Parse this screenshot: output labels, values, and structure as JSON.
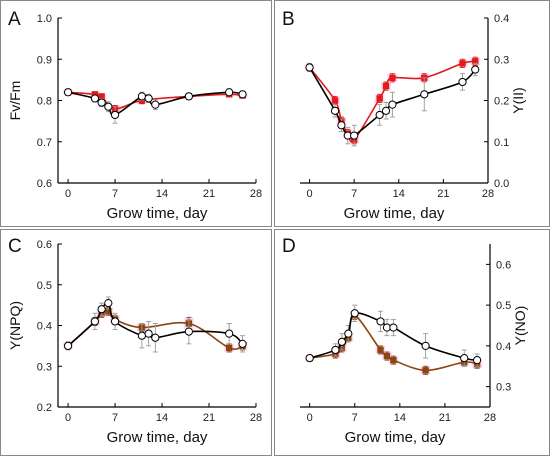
{
  "figure": {
    "colors": {
      "frame": "#888888",
      "axis": "#000000",
      "control": "#000000",
      "treated_red": "#e31a1c",
      "treated_brown": "#8b4513",
      "error_bar": "#999999",
      "treated_shade": "#ff99dd"
    }
  },
  "chart_data": [
    {
      "panel": "A",
      "type": "line",
      "xlabel": "Grow time, day",
      "ylabel": "Fv/Fm",
      "ylabel_side": "left",
      "xlim": [
        -1.5,
        28
      ],
      "ylim": [
        0.6,
        1.0
      ],
      "xticks": [
        "0",
        "7",
        "14",
        "21",
        "28"
      ],
      "yticks": [
        "0.6",
        "0.7",
        "0.8",
        "0.9",
        "1.0"
      ],
      "series": [
        {
          "marker": "circle-open",
          "color": "#000000",
          "x": [
            0,
            4,
            5,
            6,
            7,
            11,
            12,
            13,
            18,
            24,
            26
          ],
          "y": [
            0.82,
            0.805,
            0.795,
            0.785,
            0.765,
            0.81,
            0.805,
            0.79,
            0.81,
            0.82,
            0.815
          ],
          "err": [
            0.008,
            0.008,
            0.01,
            0.012,
            0.02,
            0.01,
            0.01,
            0.012,
            0.008,
            0.008,
            0.008
          ]
        },
        {
          "marker": "square-filled",
          "color": "#e31a1c",
          "x": [
            0,
            4,
            5,
            7,
            11,
            18,
            24,
            26
          ],
          "y": [
            0.82,
            0.815,
            0.81,
            0.78,
            0.8,
            0.81,
            0.815,
            0.812
          ],
          "err": [
            0.006,
            0.006,
            0.006,
            0.008,
            0.008,
            0.006,
            0.006,
            0.006
          ]
        }
      ]
    },
    {
      "panel": "B",
      "type": "line",
      "xlabel": "Grow time, day",
      "ylabel": "Y(II)",
      "ylabel_side": "right",
      "xlim": [
        -1.5,
        28
      ],
      "ylim": [
        0.0,
        0.4
      ],
      "xticks": [
        "0",
        "7",
        "14",
        "21",
        "28"
      ],
      "yticks": [
        "0.0",
        "0.1",
        "0.2",
        "0.3",
        "0.4"
      ],
      "series": [
        {
          "marker": "circle-open",
          "color": "#000000",
          "x": [
            0,
            4,
            5,
            6,
            7,
            11,
            12,
            13,
            18,
            24,
            26
          ],
          "y": [
            0.28,
            0.175,
            0.14,
            0.115,
            0.115,
            0.165,
            0.175,
            0.19,
            0.215,
            0.245,
            0.275
          ],
          "err": [
            0.01,
            0.015,
            0.015,
            0.02,
            0.025,
            0.025,
            0.02,
            0.03,
            0.04,
            0.02,
            0.015
          ]
        },
        {
          "marker": "square-filled",
          "color": "#e31a1c",
          "x": [
            0,
            4,
            5,
            6,
            7,
            11,
            12,
            13,
            18,
            24,
            26
          ],
          "y": [
            0.28,
            0.2,
            0.15,
            0.12,
            0.105,
            0.205,
            0.235,
            0.255,
            0.255,
            0.29,
            0.295
          ],
          "err": [
            0.008,
            0.01,
            0.01,
            0.01,
            0.01,
            0.01,
            0.01,
            0.01,
            0.01,
            0.01,
            0.01
          ]
        }
      ]
    },
    {
      "panel": "C",
      "type": "line",
      "xlabel": "Grow time, day",
      "ylabel": "Y(NPQ)",
      "ylabel_side": "left",
      "xlim": [
        -1.5,
        28
      ],
      "ylim": [
        0.2,
        0.6
      ],
      "xticks": [
        "0",
        "7",
        "14",
        "21",
        "28"
      ],
      "yticks": [
        "0.2",
        "0.3",
        "0.4",
        "0.5",
        "0.6"
      ],
      "series": [
        {
          "marker": "circle-open",
          "color": "#000000",
          "x": [
            0,
            4,
            5,
            6,
            7,
            11,
            12,
            13,
            18,
            24,
            26
          ],
          "y": [
            0.35,
            0.41,
            0.44,
            0.455,
            0.41,
            0.375,
            0.38,
            0.37,
            0.385,
            0.38,
            0.355
          ],
          "err": [
            0.01,
            0.02,
            0.015,
            0.015,
            0.02,
            0.03,
            0.03,
            0.035,
            0.03,
            0.025,
            0.02
          ]
        },
        {
          "marker": "square-filled",
          "color": "#8b4513",
          "x": [
            0,
            4,
            5,
            6,
            7,
            11,
            18,
            24,
            26
          ],
          "y": [
            0.35,
            0.41,
            0.43,
            0.435,
            0.415,
            0.395,
            0.405,
            0.345,
            0.35
          ],
          "err": [
            0.008,
            0.01,
            0.01,
            0.01,
            0.01,
            0.01,
            0.015,
            0.01,
            0.01
          ]
        }
      ]
    },
    {
      "panel": "D",
      "type": "line",
      "xlabel": "Grow time, day",
      "ylabel": "Y(NO)",
      "ylabel_side": "right",
      "xlim": [
        -1.5,
        28
      ],
      "ylim": [
        0.25,
        0.65
      ],
      "xticks": [
        "0",
        "7",
        "14",
        "21",
        "28"
      ],
      "yticks": [
        "0.3",
        "0.4",
        "0.5",
        "0.6"
      ],
      "series": [
        {
          "marker": "circle-open",
          "color": "#000000",
          "x": [
            0,
            4,
            5,
            6,
            7,
            11,
            12,
            13,
            18,
            24,
            26
          ],
          "y": [
            0.37,
            0.39,
            0.41,
            0.43,
            0.48,
            0.46,
            0.445,
            0.445,
            0.4,
            0.37,
            0.365
          ],
          "err": [
            0.008,
            0.015,
            0.02,
            0.02,
            0.02,
            0.025,
            0.02,
            0.02,
            0.03,
            0.02,
            0.015
          ]
        },
        {
          "marker": "square-filled",
          "color": "#8b4513",
          "x": [
            0,
            4,
            5,
            6,
            7,
            11,
            12,
            13,
            18,
            24,
            26
          ],
          "y": [
            0.37,
            0.38,
            0.395,
            0.42,
            0.475,
            0.39,
            0.375,
            0.365,
            0.34,
            0.36,
            0.355
          ],
          "err": [
            0.006,
            0.01,
            0.01,
            0.01,
            0.01,
            0.01,
            0.01,
            0.01,
            0.01,
            0.01,
            0.01
          ]
        }
      ]
    }
  ]
}
